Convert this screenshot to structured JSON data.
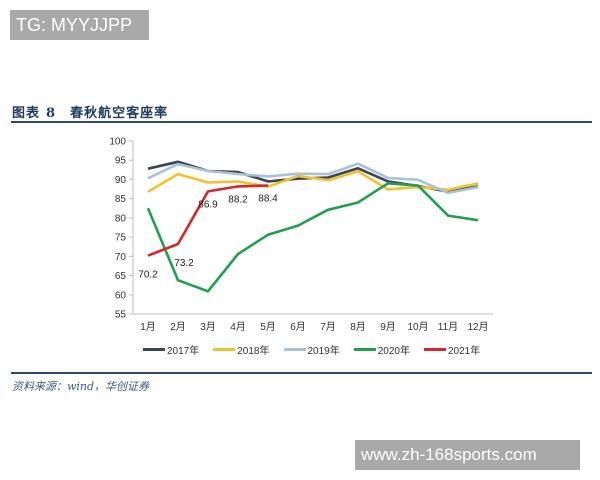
{
  "watermark_top": "TG: MYYJJPP",
  "watermark_bottom": "www.zh-168sports.com",
  "figure": {
    "label": "图表",
    "number": "8",
    "title": "春秋航空客座率"
  },
  "source": "资料来源：wind，华创证券",
  "colors": {
    "2017": "#3b4556",
    "2018": "#f2c12e",
    "2019": "#a9c2dc",
    "2020": "#1fa050",
    "2021": "#d7262a",
    "rule": "#2c4a6e"
  },
  "chart_data": {
    "type": "line",
    "title": "春秋航空客座率",
    "xlabel": "",
    "ylabel": "",
    "ylim": [
      55,
      100
    ],
    "yticks": [
      55,
      60,
      65,
      70,
      75,
      80,
      85,
      90,
      95,
      100
    ],
    "grid": false,
    "legend_position": "bottom",
    "categories": [
      "1月",
      "2月",
      "3月",
      "4月",
      "5月",
      "6月",
      "7月",
      "8月",
      "9月",
      "10月",
      "11月",
      "12月"
    ],
    "series": [
      {
        "name": "2017年",
        "color": "#3b4556",
        "values": [
          92.8,
          94.6,
          92.2,
          91.9,
          89.5,
          90.2,
          90.5,
          92.9,
          89.5,
          88.3,
          86.8,
          88.2
        ]
      },
      {
        "name": "2018年",
        "color": "#f2c12e",
        "values": [
          86.8,
          91.4,
          89.2,
          89.5,
          88.1,
          90.9,
          89.8,
          92.1,
          87.4,
          88.0,
          87.3,
          89.0
        ]
      },
      {
        "name": "2019年",
        "color": "#a9c2dc",
        "values": [
          90.3,
          94.0,
          92.2,
          91.4,
          90.8,
          91.5,
          91.4,
          94.1,
          90.4,
          89.9,
          86.5,
          88.0
        ]
      },
      {
        "name": "2020年",
        "color": "#1fa050",
        "values": [
          82.5,
          63.8,
          60.9,
          70.6,
          75.6,
          78.0,
          82.1,
          84.0,
          89.0,
          88.4,
          80.6,
          79.4
        ]
      },
      {
        "name": "2021年",
        "color": "#d7262a",
        "values": [
          70.2,
          73.2,
          86.9,
          88.2,
          88.4
        ]
      }
    ],
    "annotations": [
      {
        "series": "2021年",
        "month": "1月",
        "text": "70.2"
      },
      {
        "series": "2021年",
        "month": "2月",
        "text": "73.2"
      },
      {
        "series": "2021年",
        "month": "3月",
        "text": "86.9"
      },
      {
        "series": "2021年",
        "month": "4月",
        "text": "88.2"
      },
      {
        "series": "2021年",
        "month": "5月",
        "text": "88.4"
      }
    ]
  }
}
